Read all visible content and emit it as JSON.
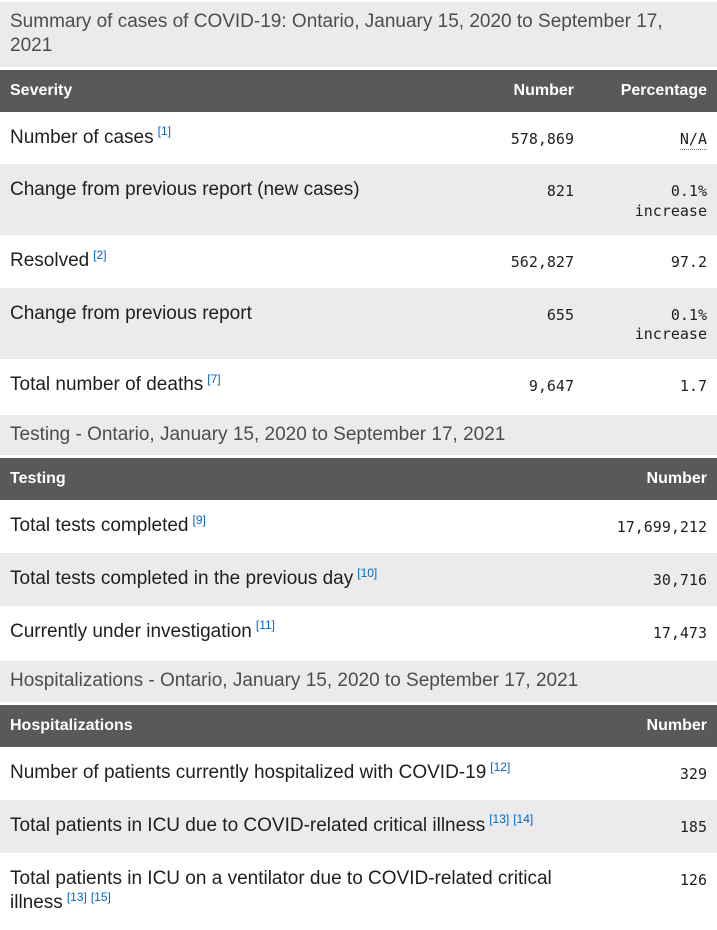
{
  "colors": {
    "header_bg": "#595959",
    "header_text": "#ffffff",
    "caption_bg": "#ebebeb",
    "stripe_bg": "#ebebeb",
    "link_blue": "#0066cc",
    "body_text": "#1f1f1f"
  },
  "tables": [
    {
      "caption": "Summary of cases of COVID-19: Ontario, January 15, 2020 to September 17, 2021",
      "columns": [
        "Severity",
        "Number",
        "Percentage"
      ],
      "rows": [
        {
          "label": "Number of cases",
          "footnotes": [
            "[1]"
          ],
          "number": "578,869",
          "percentage": "N/A",
          "percentage_is_abbr": true
        },
        {
          "label": "Change from previous report (new cases)",
          "footnotes": [],
          "number": "821",
          "percentage": "0.1% increase",
          "percentage_is_abbr": false
        },
        {
          "label": "Resolved",
          "footnotes": [
            "[2]"
          ],
          "number": "562,827",
          "percentage": "97.2",
          "percentage_is_abbr": false
        },
        {
          "label": "Change from previous report",
          "footnotes": [],
          "number": "655",
          "percentage": "0.1% increase",
          "percentage_is_abbr": false
        },
        {
          "label": "Total number of deaths",
          "footnotes": [
            "[7]"
          ],
          "number": "9,647",
          "percentage": "1.7",
          "percentage_is_abbr": false
        }
      ]
    },
    {
      "caption": "Testing - Ontario, January 15, 2020 to September 17, 2021",
      "columns": [
        "Testing",
        "Number"
      ],
      "rows": [
        {
          "label": "Total tests completed",
          "footnotes": [
            "[9]"
          ],
          "number": "17,699,212"
        },
        {
          "label": "Total tests completed in the previous day",
          "footnotes": [
            "[10]"
          ],
          "number": "30,716"
        },
        {
          "label": "Currently under investigation",
          "footnotes": [
            "[11]"
          ],
          "number": "17,473"
        }
      ]
    },
    {
      "caption": "Hospitalizations - Ontario, January 15, 2020 to September 17, 2021",
      "columns": [
        "Hospitalizations",
        "Number"
      ],
      "rows": [
        {
          "label": "Number of patients currently hospitalized with COVID-19",
          "footnotes": [
            "[12]"
          ],
          "number": "329"
        },
        {
          "label": "Total patients in ICU due to COVID-related critical illness",
          "footnotes": [
            "[13]",
            "[14]"
          ],
          "number": "185"
        },
        {
          "label": "Total patients in ICU on a ventilator due to COVID-related critical illness",
          "footnotes": [
            "[13]",
            "[15]"
          ],
          "number": "126"
        }
      ]
    }
  ]
}
